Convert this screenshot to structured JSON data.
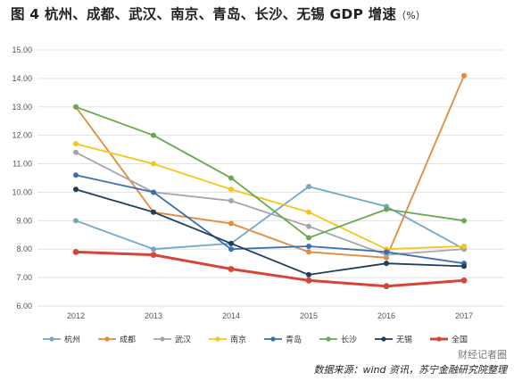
{
  "title": "图 4 杭州、成都、武汉、南京、青岛、长沙、无锡 GDP 增速",
  "title_unit": "（%）",
  "source": "数据来源：wind 资讯，苏宁金融研究院整理",
  "watermark": "财经记者圈",
  "chart_data": {
    "type": "line",
    "title": "图 4 杭州、成都、武汉、南京、青岛、长沙、无锡 GDP 增速（%）",
    "x": [
      "2012",
      "2013",
      "2014",
      "2015",
      "2016",
      "2017"
    ],
    "ylim": [
      6.0,
      15.0
    ],
    "yticks": [
      "6.00",
      "7.00",
      "8.00",
      "9.00",
      "10.00",
      "11.00",
      "12.00",
      "13.00",
      "14.00",
      "15.00"
    ],
    "grid": true,
    "legend": "bottom",
    "series": [
      {
        "name": "杭州",
        "color": "#6fa8c8",
        "values": [
          9.0,
          8.0,
          8.2,
          10.2,
          9.5,
          8.0
        ]
      },
      {
        "name": "成都",
        "color": "#e08a3c",
        "values": [
          13.0,
          9.3,
          8.9,
          7.9,
          7.7,
          14.1
        ]
      },
      {
        "name": "武汉",
        "color": "#a6a6a6",
        "values": [
          11.4,
          10.0,
          9.7,
          8.8,
          7.8,
          8.0
        ]
      },
      {
        "name": "南京",
        "color": "#f5c518",
        "values": [
          11.7,
          11.0,
          10.1,
          9.3,
          8.0,
          8.1
        ]
      },
      {
        "name": "青岛",
        "color": "#3c6fb0",
        "values": [
          10.6,
          10.0,
          8.0,
          8.1,
          7.9,
          7.5
        ]
      },
      {
        "name": "长沙",
        "color": "#6aa84f",
        "values": [
          13.0,
          12.0,
          10.5,
          8.4,
          9.4,
          9.0
        ]
      },
      {
        "name": "无锡",
        "color": "#1f3d5c",
        "values": [
          10.1,
          9.3,
          8.2,
          7.1,
          7.5,
          7.4
        ]
      },
      {
        "name": "全国",
        "color": "#d9443a",
        "values": [
          7.9,
          7.8,
          7.3,
          6.9,
          6.7,
          6.9
        ]
      }
    ]
  }
}
